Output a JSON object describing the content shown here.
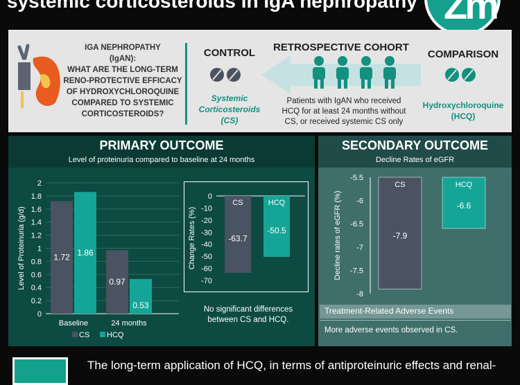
{
  "header": {
    "title": "systemic corticosteroids in IgA nephropathy",
    "logo_text": "Zm"
  },
  "question": {
    "line1": "IGA NEPHROPATHY",
    "line2": "(IgAN):",
    "line3": "WHAT ARE THE LONG-TERM",
    "line4": "RENO-PROTECTIVE EFFICACY",
    "line5": "OF HYDROXYCHLOROQUINE",
    "line6": "COMPARED TO SYSTEMIC",
    "line7": "CORTICOSTEROIDS?"
  },
  "control": {
    "heading": "CONTROL",
    "line1": "Systemic",
    "line2": "Corticosteroids",
    "line3": "(CS)"
  },
  "cohort": {
    "heading": "RETROSPECTIVE COHORT",
    "line1": "Patients with IgAN who received",
    "line2": "HCQ for at least 24 months without",
    "line3": "CS, or received systemic CS only"
  },
  "comparison": {
    "heading": "COMPARISON",
    "line1": "Hydroxychloroquine",
    "line2": "(HCQ)"
  },
  "icons": {
    "kidney": "kidney-icon",
    "pill_control": "pills-icon",
    "pill_comparison": "pills-icon",
    "people": "people-icon",
    "arrow": "arrow-left-icon"
  },
  "colors": {
    "cs": "#4a5361",
    "hcq": "#15a597",
    "teal": "#14907f"
  },
  "primary": {
    "title": "PRIMARY OUTCOME",
    "subtitle": "Level of proteinuria compared to baseline at 24 months",
    "no_diff_line1": "No significant differences",
    "no_diff_line2": "between CS and HCQ."
  },
  "secondary": {
    "title": "SECONDARY OUTCOME",
    "subtitle": "Decline Rates of eGFR",
    "ae_title": "Treatment-Related Adverse Events",
    "ae_desc": "More adverse events observed in CS."
  },
  "footer": {
    "text": "The long-term application of HCQ, in terms of antiproteinuric effects and renal-"
  },
  "chart_data": [
    {
      "type": "bar",
      "categories": [
        "Baseline",
        "24 months"
      ],
      "series": [
        {
          "name": "CS",
          "values": [
            1.72,
            0.97
          ]
        },
        {
          "name": "HCQ",
          "values": [
            1.86,
            0.53
          ]
        }
      ],
      "ylabel": "Level of Proteinuria (g/d)",
      "ylim": [
        0,
        2
      ],
      "yticks": [
        "0",
        "0.2",
        "0.4",
        "0.6",
        "0.8",
        "1",
        "1.2",
        "1.4",
        "1.6",
        "1.8",
        "2"
      ],
      "legend": "bottom"
    },
    {
      "type": "bar",
      "categories": [
        "CS",
        "HCQ"
      ],
      "values": [
        -63.7,
        -50.5
      ],
      "ylabel": "Change Rates (%)",
      "ylim": [
        -70,
        0
      ],
      "yticks": [
        "0",
        "-10",
        "-20",
        "-30",
        "-40",
        "-50",
        "-60",
        "-70"
      ]
    },
    {
      "type": "bar",
      "categories": [
        "CS",
        "HCQ"
      ],
      "values": [
        -7.9,
        -6.6
      ],
      "ylabel": "Decline rates of eGFR (%)",
      "ylim": [
        -8,
        -5.5
      ],
      "yticks": [
        "-5.5",
        "-6",
        "-6.5",
        "-7",
        "-7.5",
        "-8"
      ]
    }
  ]
}
